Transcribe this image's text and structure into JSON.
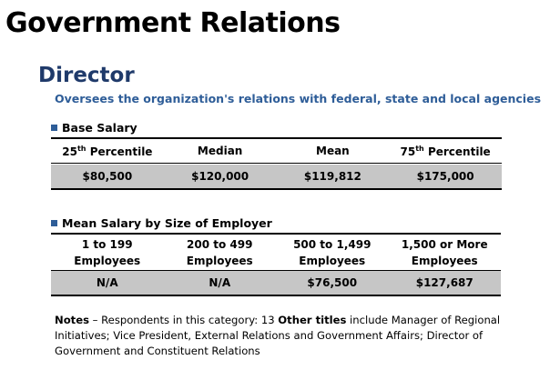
{
  "title": "Government Relations",
  "subtitle": "Director",
  "description": "Oversees the organization's relations with federal, state and local agencies",
  "base_salary": {
    "heading": "Base Salary",
    "headers": [
      {
        "main": "25",
        "sup": "th",
        "rest": " Percentile"
      },
      {
        "main": "Median",
        "sup": "",
        "rest": ""
      },
      {
        "main": "Mean",
        "sup": "",
        "rest": ""
      },
      {
        "main": "75",
        "sup": "th",
        "rest": " Percentile"
      }
    ],
    "values": [
      "$80,500",
      "$120,000",
      "$119,812",
      "$175,000"
    ]
  },
  "mean_by_size": {
    "heading": "Mean Salary by Size of Employer",
    "headers": [
      {
        "line1": "1 to 199",
        "line2": "Employees"
      },
      {
        "line1": "200  to 499",
        "line2": "Employees"
      },
      {
        "line1": "500  to 1,499",
        "line2": "Employees"
      },
      {
        "line1": "1,500  or More",
        "line2": "Employees"
      }
    ],
    "values": [
      "N/A",
      "N/A",
      "$76,500",
      "$127,687"
    ]
  },
  "notes": {
    "notes_label": "Notes",
    "notes_text": " – Respondents in this category: 13  ",
    "other_label": "Other titles",
    "other_text": " include Manager of Regional Initiatives; Vice President, External Relations and Government Affairs; Director of Government and Constituent Relations"
  }
}
